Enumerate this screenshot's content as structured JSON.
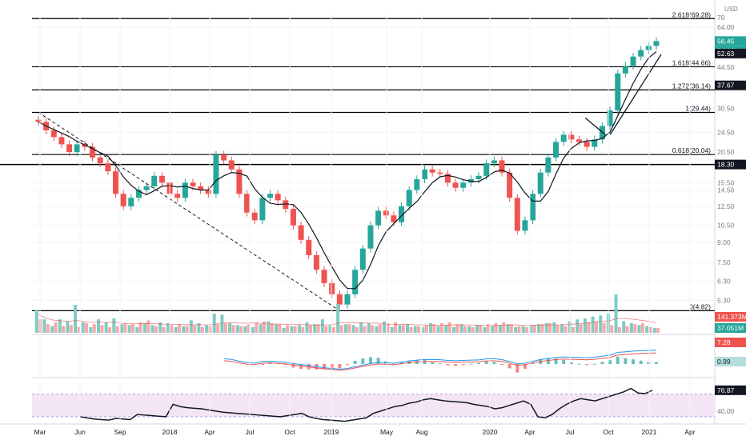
{
  "chart_data": {
    "type": "candlestick",
    "symbol_currency": "USD",
    "x_tick_labels": [
      "Mar",
      "Jun",
      "Sep",
      "2018",
      "Apr",
      "Jul",
      "Oct",
      "2019",
      "May",
      "Aug",
      "2020",
      "Apr",
      "Jul",
      "Oct",
      "2021",
      "Apr"
    ],
    "price_axis_scale": "log",
    "price_ticks": [
      "70",
      "64.00",
      "44.50",
      "30.50",
      "24.50",
      "20.50",
      "15.50",
      "14.50",
      "12.50",
      "10.50",
      "9.00",
      "7.50",
      "6.30",
      "5.30",
      "4.50"
    ],
    "fib_levels": [
      {
        "label": "2.618(69.28)",
        "value": 69.28
      },
      {
        "label": "1.618(44.66)",
        "value": 44.66
      },
      {
        "label": "1.272(36.14)",
        "value": 36.14
      },
      {
        "label": "1(29.44)",
        "value": 29.44
      },
      {
        "label": "0.618(20.04)",
        "value": 20.04
      },
      {
        "label": "0(4.82)",
        "value": 4.82
      }
    ],
    "horizontal_line_18_30": 18.3,
    "price_badges": [
      {
        "text": "56.45",
        "color": "#26a69a"
      },
      {
        "text": "2d 19h",
        "color": "#26a69a"
      },
      {
        "text": "52.63",
        "color": "#131722"
      },
      {
        "text": "37.67",
        "color": "#131722"
      },
      {
        "text": "18.30",
        "color": "#131722"
      }
    ],
    "closes": [
      27,
      25,
      23.5,
      22,
      20.5,
      22,
      21.5,
      19.5,
      18.5,
      17.2,
      14,
      12.5,
      13.5,
      14.5,
      15,
      16.5,
      15.5,
      14,
      13.5,
      15.5,
      15,
      14.5,
      14,
      20,
      19,
      17.5,
      14,
      11.8,
      11,
      13.5,
      14,
      13.2,
      12.2,
      10.5,
      9.2,
      8,
      7,
      6.2,
      5.6,
      5.1,
      5.6,
      7,
      8.5,
      10.5,
      12,
      11.5,
      10.8,
      12.5,
      14.5,
      16,
      17.5,
      17,
      16.8,
      15.5,
      14.8,
      15.5,
      16,
      16.5,
      18.5,
      19,
      17,
      13.5,
      10,
      11,
      14,
      17,
      19.5,
      22.5,
      24,
      23,
      22.5,
      21.5,
      23,
      26,
      30,
      42,
      45,
      49,
      52,
      54,
      56.45
    ],
    "volume_badge": "141.373M",
    "volume_ma_badge": "37.051M",
    "volume_bars_green": [
      48,
      28,
      14,
      28,
      24,
      58,
      22,
      12,
      28,
      22,
      30,
      18,
      16,
      12,
      20,
      16,
      22,
      20,
      12,
      14,
      26,
      20,
      16,
      40,
      38,
      20,
      16,
      14,
      12,
      18,
      24,
      18,
      10,
      14,
      16,
      22,
      18,
      28,
      16,
      60,
      18,
      16,
      22,
      20,
      14,
      24,
      12,
      16,
      18,
      14,
      12,
      20,
      14,
      16,
      12,
      18,
      14,
      16,
      12,
      14,
      16,
      18,
      12,
      14,
      16,
      18,
      20,
      22,
      18,
      24,
      28,
      30,
      34,
      36,
      40,
      80,
      24,
      20,
      16,
      14,
      10
    ],
    "volume_bars_red": [
      28,
      18,
      22,
      14,
      16,
      12,
      20,
      18,
      16,
      12,
      14,
      20,
      18,
      22,
      26,
      14,
      12,
      16,
      18,
      14,
      16,
      12,
      14,
      18,
      20,
      16,
      14,
      18,
      22,
      24,
      20,
      18,
      16,
      14,
      12,
      16,
      18,
      14,
      12,
      16,
      18,
      12,
      14,
      16,
      18,
      20,
      22,
      16,
      12,
      14,
      16,
      18,
      20,
      22,
      18,
      14,
      12,
      16,
      18,
      20,
      22,
      18,
      14,
      12,
      16,
      18,
      20,
      16,
      14,
      12,
      18,
      22,
      24,
      20,
      16,
      12,
      14,
      18,
      20,
      12,
      10
    ],
    "macd_badges": [
      {
        "text": "7.28",
        "color": "#ef5350"
      },
      {
        "text": "0.99",
        "color": "#b2dfdb"
      }
    ],
    "rsi_value": "76.87",
    "rsi_tick": "40.00",
    "rsi_series": [
      30,
      28,
      26,
      25,
      24,
      27,
      26,
      25,
      34,
      33,
      32,
      31,
      30,
      52,
      48,
      46,
      45,
      44,
      42,
      40,
      38,
      37,
      36,
      35,
      34,
      33,
      32,
      31,
      30,
      32,
      34,
      36,
      30,
      27,
      25,
      24,
      23,
      22,
      24,
      26,
      28,
      36,
      40,
      44,
      48,
      50,
      54,
      56,
      60,
      62,
      60,
      58,
      57,
      56,
      55,
      52,
      50,
      48,
      44,
      46,
      50,
      54,
      58,
      52,
      30,
      28,
      34,
      44,
      52,
      58,
      62,
      60,
      58,
      62,
      66,
      70,
      74,
      80,
      72,
      71,
      76.87
    ]
  }
}
